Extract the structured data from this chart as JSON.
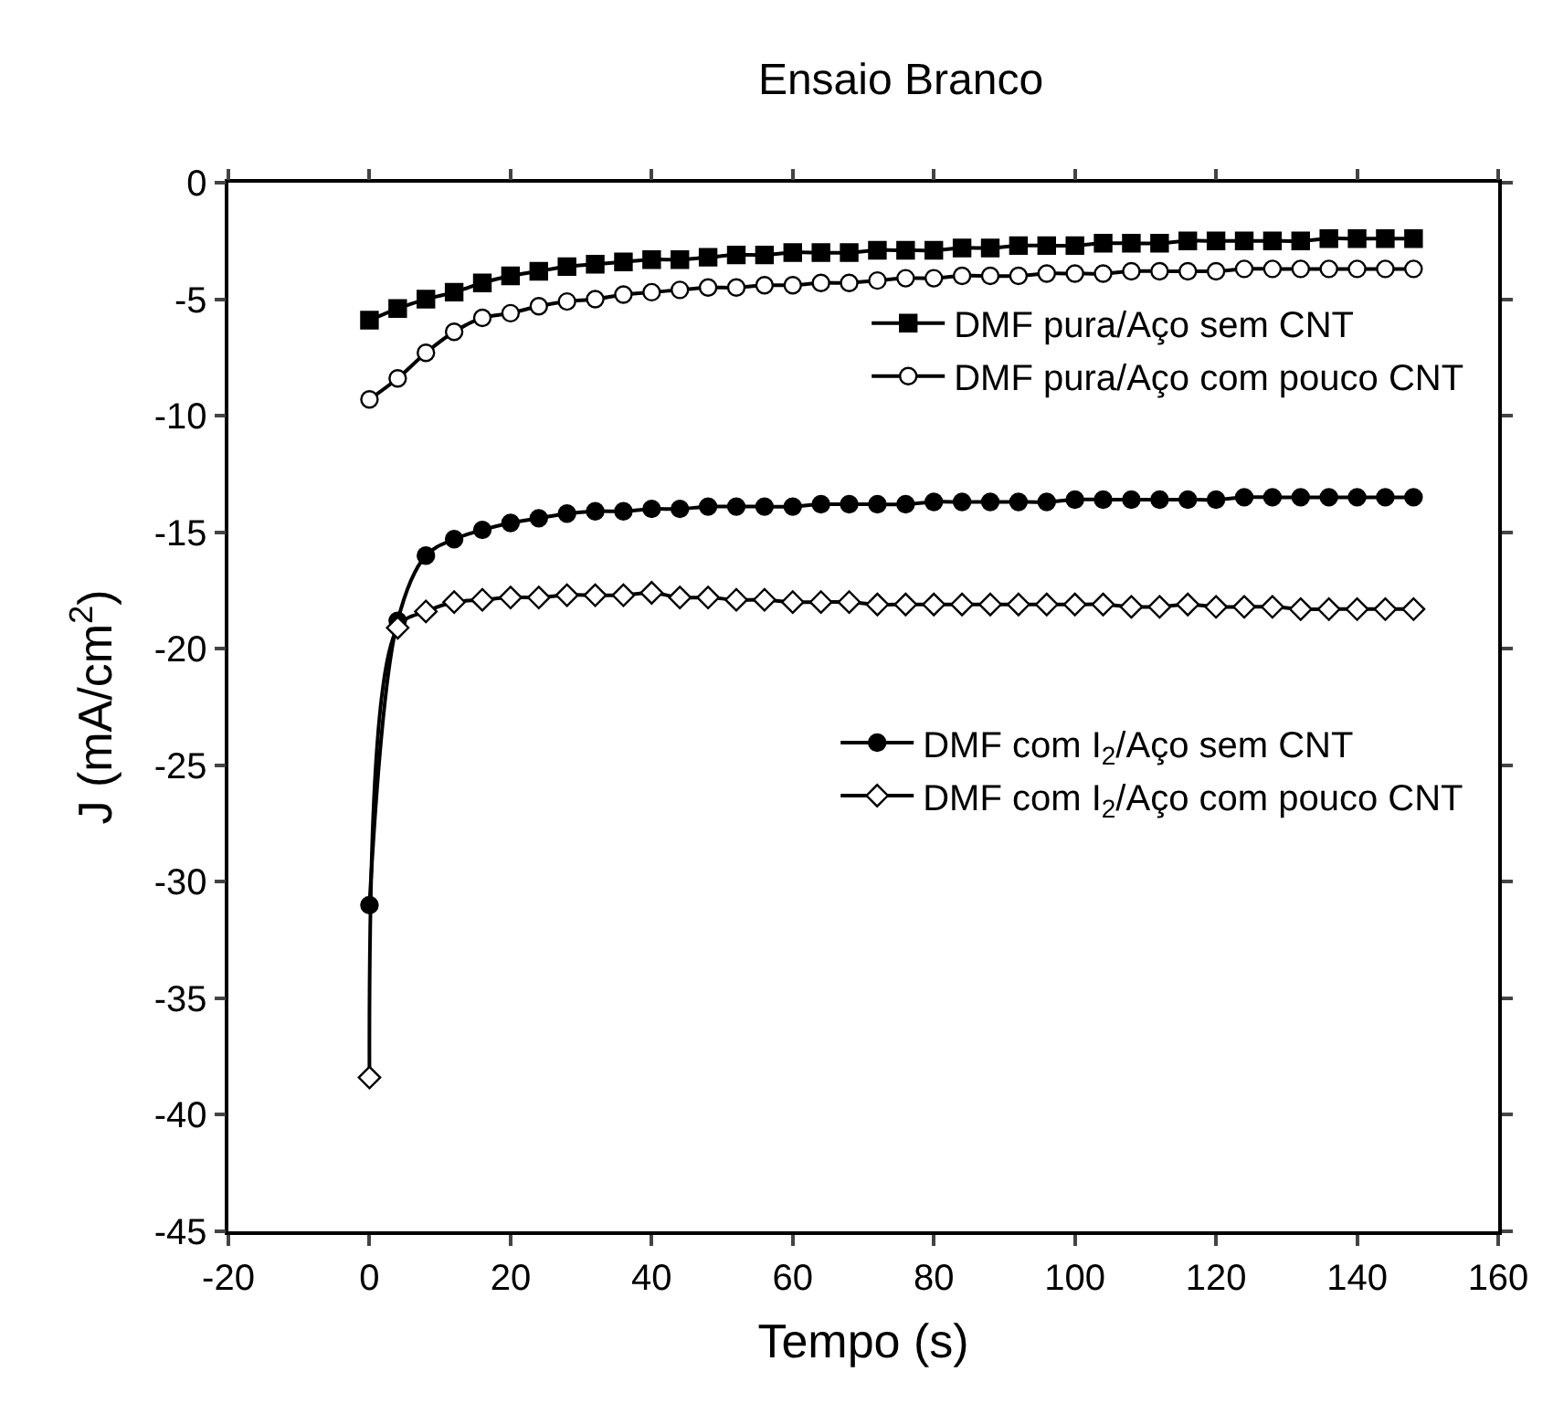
{
  "chart_data": {
    "type": "line",
    "title": "Ensaio Branco",
    "xlabel": "Tempo (s)",
    "ylabel": "J (mA/cm$^{2}$)",
    "x": [
      0,
      4,
      8,
      12,
      16,
      20,
      24,
      28,
      32,
      36,
      40,
      44,
      48,
      52,
      56,
      60,
      64,
      68,
      72,
      76,
      80,
      84,
      88,
      92,
      96,
      100,
      104,
      108,
      112,
      116,
      120,
      124,
      128,
      132,
      136,
      140,
      144,
      148
    ],
    "series": [
      {
        "name": "DMF pura/Aço sem CNT",
        "color": "#000000",
        "marker": "square",
        "values": [
          -5.9,
          -5.4,
          -5.0,
          -4.7,
          -4.3,
          -4.0,
          -3.8,
          -3.6,
          -3.5,
          -3.4,
          -3.3,
          -3.3,
          -3.2,
          -3.1,
          -3.1,
          -3.0,
          -3.0,
          -3.0,
          -2.9,
          -2.9,
          -2.9,
          -2.8,
          -2.8,
          -2.7,
          -2.7,
          -2.7,
          -2.6,
          -2.6,
          -2.6,
          -2.5,
          -2.5,
          -2.5,
          -2.5,
          -2.5,
          -2.4,
          -2.4,
          -2.4,
          -2.4
        ]
      },
      {
        "name": "DMF pura/Aço com pouco CNT",
        "color": "#000000",
        "marker": "circle-open",
        "values": [
          -9.3,
          -8.4,
          -7.3,
          -6.4,
          -5.8,
          -5.6,
          -5.3,
          -5.1,
          -5.0,
          -4.8,
          -4.7,
          -4.6,
          -4.5,
          -4.5,
          -4.4,
          -4.4,
          -4.3,
          -4.3,
          -4.2,
          -4.1,
          -4.1,
          -4.0,
          -4.0,
          -4.0,
          -3.9,
          -3.9,
          -3.9,
          -3.8,
          -3.8,
          -3.8,
          -3.8,
          -3.7,
          -3.7,
          -3.7,
          -3.7,
          -3.7,
          -3.7,
          -3.7
        ]
      },
      {
        "name": "DMF com I$_{2}$/Aço sem CNT",
        "color": "#000000",
        "marker": "circle",
        "values": [
          -31.0,
          -18.8,
          -16.0,
          -15.3,
          -14.9,
          -14.6,
          -14.4,
          -14.2,
          -14.1,
          -14.1,
          -14.0,
          -14.0,
          -13.9,
          -13.9,
          -13.9,
          -13.9,
          -13.8,
          -13.8,
          -13.8,
          -13.8,
          -13.7,
          -13.7,
          -13.7,
          -13.7,
          -13.7,
          -13.6,
          -13.6,
          -13.6,
          -13.6,
          -13.6,
          -13.6,
          -13.5,
          -13.5,
          -13.5,
          -13.5,
          -13.5,
          -13.5,
          -13.5
        ]
      },
      {
        "name": "DMF com I$_{2}$/Aço com pouco CNT",
        "color": "#000000",
        "marker": "diamond-open",
        "values": [
          -38.4,
          -19.1,
          -18.4,
          -18.0,
          -17.9,
          -17.8,
          -17.8,
          -17.7,
          -17.7,
          -17.7,
          -17.6,
          -17.8,
          -17.8,
          -17.9,
          -17.9,
          -18.0,
          -18.0,
          -18.0,
          -18.1,
          -18.1,
          -18.1,
          -18.1,
          -18.1,
          -18.1,
          -18.1,
          -18.1,
          -18.1,
          -18.2,
          -18.2,
          -18.1,
          -18.2,
          -18.2,
          -18.2,
          -18.3,
          -18.3,
          -18.3,
          -18.3,
          -18.3
        ]
      }
    ],
    "xlim": [
      -20,
      160
    ],
    "xticks": [
      -20,
      0,
      20,
      40,
      60,
      80,
      100,
      120,
      140,
      160
    ],
    "ylim": [
      -45,
      0
    ],
    "yticks": [
      0,
      -5,
      -10,
      -15,
      -20,
      -25,
      -30,
      -35,
      -40,
      -45
    ],
    "legend": "right",
    "line_style": "solid"
  }
}
